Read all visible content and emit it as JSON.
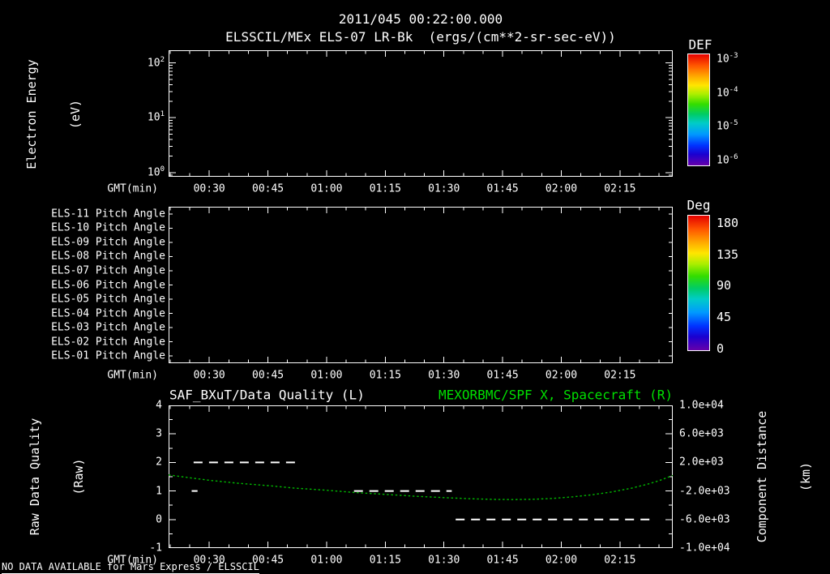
{
  "header": {
    "datetime_title": "2011/045 00:22:00.000"
  },
  "footer": {
    "message": "NO DATA AVAILABLE for Mars Express / ELSSCIL"
  },
  "colors": {
    "foreground": "#ffffff",
    "background": "#000000",
    "green_title": "#00e000",
    "green_curve": "#00b400",
    "quality_series": "#ffffff"
  },
  "time_axis": {
    "label": "GMT(min)",
    "t_range_min": [
      19.6,
      148.5
    ],
    "minor_tick_step_min": 5,
    "major_ticks": [
      {
        "t": 30,
        "label": "00:30"
      },
      {
        "t": 45,
        "label": "00:45"
      },
      {
        "t": 60,
        "label": "01:00"
      },
      {
        "t": 75,
        "label": "01:15"
      },
      {
        "t": 90,
        "label": "01:30"
      },
      {
        "t": 105,
        "label": "01:45"
      },
      {
        "t": 120,
        "label": "02:00"
      },
      {
        "t": 135,
        "label": "02:15"
      }
    ]
  },
  "chart_data": [
    {
      "type": "heatmap",
      "title": "ELSSCIL/MEx ELS-07 LR-Bk  (ergs/(cm**2-sr-sec-eV))",
      "ylabel_lines": [
        "Electron Energy",
        "(eV)"
      ],
      "yscale": "log",
      "ylim": [
        0.84,
        170
      ],
      "ytick_values": [
        100,
        10,
        1
      ],
      "xlabel": "GMT(min)",
      "values": [],
      "colorbar": {
        "title": "DEF",
        "scale": "log",
        "tick_exponents": [
          -3,
          -4,
          -5,
          -6
        ]
      }
    },
    {
      "type": "heatmap",
      "row_labels": [
        "ELS-11 Pitch Angle",
        "ELS-10 Pitch Angle",
        "ELS-09 Pitch Angle",
        "ELS-08 Pitch Angle",
        "ELS-07 Pitch Angle",
        "ELS-06 Pitch Angle",
        "ELS-05 Pitch Angle",
        "ELS-04 Pitch Angle",
        "ELS-03 Pitch Angle",
        "ELS-02 Pitch Angle",
        "ELS-01 Pitch Angle"
      ],
      "xlabel": "GMT(min)",
      "values": [],
      "colorbar": {
        "title": "Deg",
        "tick_values": [
          180,
          135,
          90,
          45,
          0
        ]
      }
    },
    {
      "type": "line",
      "title_left": "SAF_BXuT/Data Quality (L)",
      "title_right": "MEXORBMC/SPF X, Spacecraft (R)",
      "ylabel_left_lines": [
        "Raw Data Quality",
        "(Raw)"
      ],
      "ylabel_right_lines": [
        "Component Distance",
        "(km)"
      ],
      "ylim_left": [
        -1,
        4
      ],
      "yticks_left": [
        4,
        3,
        2,
        1,
        0,
        -1
      ],
      "ylim_right": [
        -10000,
        10000
      ],
      "yticks_right": [
        {
          "v": 10000,
          "label": "1.0e+04"
        },
        {
          "v": 6000,
          "label": "6.0e+03"
        },
        {
          "v": 2000,
          "label": "2.0e+03"
        },
        {
          "v": -2000,
          "label": "-2.0e+03"
        },
        {
          "v": -6000,
          "label": "-6.0e+03"
        },
        {
          "v": -10000,
          "label": "-1.0e+04"
        }
      ],
      "xlabel": "GMT(min)",
      "series": [
        {
          "name": "SAF_BXuT/Data Quality (L)",
          "axis": "left",
          "style": "dashed",
          "segments": [
            {
              "value": 2,
              "t_start": 26,
              "t_end": 52
            },
            {
              "value": 1,
              "t_start": 25.5,
              "t_end": 27
            },
            {
              "value": 1,
              "t_start": 67,
              "t_end": 92
            },
            {
              "value": 0,
              "t_start": 93,
              "t_end": 143
            }
          ]
        },
        {
          "name": "MEXORBMC/SPF X, Spacecraft (R)",
          "axis": "right",
          "style": "dotted",
          "points": [
            [
              19.6,
              250
            ],
            [
              25,
              -150
            ],
            [
              30,
              -500
            ],
            [
              37,
              -900
            ],
            [
              45,
              -1250
            ],
            [
              52,
              -1600
            ],
            [
              60,
              -1900
            ],
            [
              67,
              -2200
            ],
            [
              75,
              -2480
            ],
            [
              82,
              -2720
            ],
            [
              90,
              -2930
            ],
            [
              97,
              -3090
            ],
            [
              103,
              -3180
            ],
            [
              108,
              -3210
            ],
            [
              113,
              -3160
            ],
            [
              118,
              -3030
            ],
            [
              123,
              -2820
            ],
            [
              128,
              -2520
            ],
            [
              133,
              -2120
            ],
            [
              138,
              -1600
            ],
            [
              142,
              -1060
            ],
            [
              145,
              -560
            ],
            [
              148.5,
              180
            ]
          ]
        }
      ]
    }
  ]
}
